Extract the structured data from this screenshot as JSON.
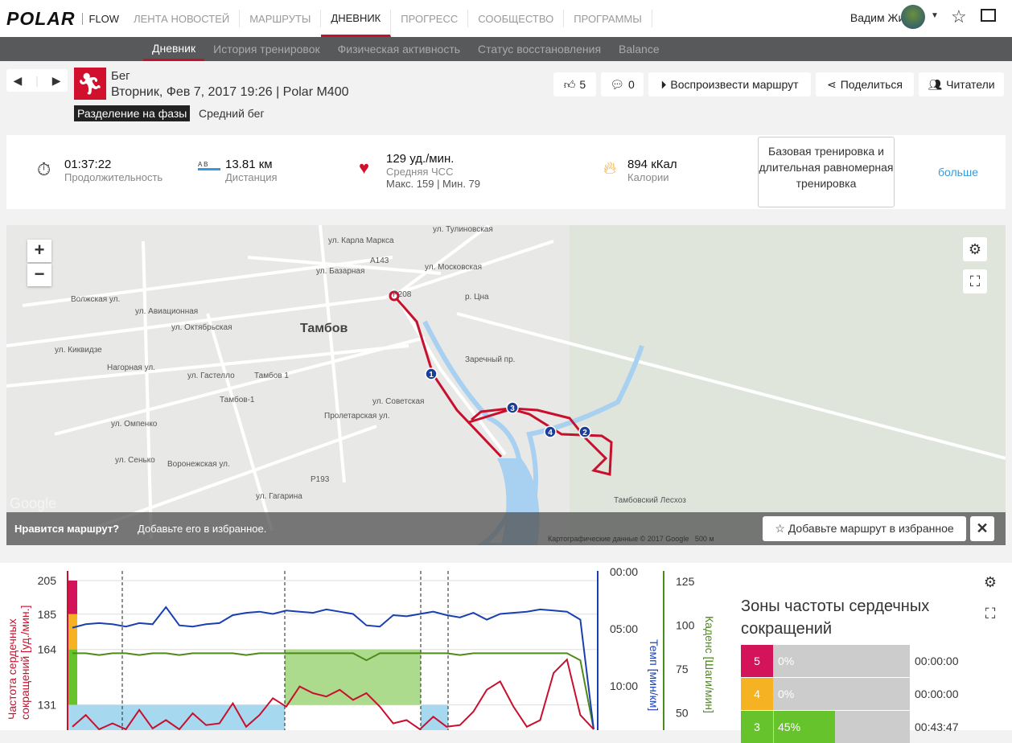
{
  "header": {
    "logo": "POLAR",
    "product": "FLOW",
    "nav": [
      "ЛЕНТА НОВОСТЕЙ",
      "МАРШРУТЫ",
      "ДНЕВНИК",
      "ПРОГРЕСС",
      "СООБЩЕСТВО",
      "ПРОГРАММЫ"
    ],
    "active_nav": 2,
    "user": "Вадим Жилин"
  },
  "subnav": {
    "items": [
      "Дневник",
      "История тренировок",
      "Физическая активность",
      "Статус восстановления",
      "Balance"
    ],
    "active": 0
  },
  "session": {
    "sport": "Бег",
    "datetime": "Вторник, Фев 7, 2017 19:26 | Polar M400",
    "phase_tag": "Разделение на фазы",
    "phase_type": "Средний бег"
  },
  "actions": {
    "likes": "5",
    "comments": "0",
    "replay": "Воспроизвести маршрут",
    "share": "Поделиться",
    "readers": "Читатели"
  },
  "summary": {
    "duration": "01:37:22",
    "duration_label": "Продолжительность",
    "ab_label": "A  B",
    "distance": "13.81 км",
    "distance_label": "Дистанция",
    "hr": "129 уд./мин.",
    "hr_label": "Средняя ЧСС",
    "hr_max": "Макс. 159  |  Мин. 79",
    "calories": "894 кКал",
    "calories_label": "Калории",
    "training": "Базовая тренировка и длительная равномерная тренировка",
    "more": "больше"
  },
  "map": {
    "city": "Тамбов",
    "labels": [
      "ул. Московская",
      "ул. Базарная",
      "ул. Октябрьская",
      "ул. Киквидзе",
      "ул. Гастелло",
      "ул. Советская",
      "Пролетарская ул.",
      "ул. Авиационная",
      "Волжская ул.",
      "Нагорная ул.",
      "ул. Омпенко",
      "ул. Сенько",
      "Воронежская ул.",
      "ул. Гагарина",
      "Тамбов 1",
      "Тамбов-1",
      "р. Цна",
      "Заречный пр.",
      "Тамбовский Лесхоз",
      "A143",
      "P208",
      "P193",
      "ул. Карла Маркса",
      "ул. Тулиновская"
    ],
    "markers": [
      "1",
      "2",
      "3",
      "4"
    ],
    "prompt_q": "Нравится маршрут?",
    "prompt_a": "Добавьте его в избранное.",
    "fav_button": "Добавьте маршрут в избранное",
    "close": "✕",
    "copyright": "Картографические данные © 2017 Google",
    "scale": "500 м",
    "zoom_in": "+",
    "zoom_out": "−",
    "watermark": "Google"
  },
  "chart": {
    "hr_axis_label": "Частота сердечных сокращений [уд./мин.]",
    "hr_ticks": [
      "205",
      "185",
      "164",
      "131"
    ],
    "pace_axis_label": "Темп [мин/км]",
    "pace_ticks": [
      "00:00",
      "05:00",
      "10:00"
    ],
    "cadence_axis_label": "Каденс [Шаги/мин]",
    "cadence_ticks": [
      "125",
      "100",
      "75",
      "50"
    ],
    "hr": [
      118,
      125,
      112,
      120,
      115,
      128,
      117,
      122,
      114,
      126,
      119,
      120,
      132,
      118,
      125,
      135,
      130,
      142,
      138,
      136,
      140,
      134,
      138,
      130,
      120,
      122,
      115,
      124,
      118,
      119,
      127,
      140,
      145,
      130,
      118,
      122,
      150,
      158,
      125,
      80
    ],
    "pace": [
      4.9,
      4.6,
      4.5,
      4.6,
      4.8,
      4.5,
      4.6,
      3.1,
      4.7,
      4.8,
      4.6,
      4.5,
      3.8,
      3.6,
      3.5,
      3.7,
      3.4,
      3.5,
      3.6,
      3.3,
      3.5,
      3.7,
      4.7,
      4.8,
      3.8,
      3.9,
      3.7,
      3.5,
      3.8,
      4.0,
      3.6,
      4.2,
      3.7,
      3.6,
      3.5,
      3.3,
      3.4,
      3.5,
      4.2,
      14
    ],
    "cadence": [
      84,
      84,
      83,
      84,
      84,
      83,
      84,
      84,
      83,
      84,
      84,
      84,
      84,
      83,
      84,
      84,
      84,
      84,
      84,
      84,
      84,
      84,
      80,
      84,
      84,
      84,
      84,
      84,
      84,
      83,
      84,
      84,
      84,
      84,
      84,
      84,
      84,
      84,
      80,
      40
    ]
  },
  "zones": {
    "title": "Зоны частоты сердечных сокращений",
    "rows": [
      {
        "zone": "5",
        "percent": "0%",
        "time": "00:00:00",
        "color": "#d3145a",
        "fill": 0
      },
      {
        "zone": "4",
        "percent": "0%",
        "time": "00:00:00",
        "color": "#f5b324",
        "fill": 0
      },
      {
        "zone": "3",
        "percent": "45%",
        "time": "00:43:47",
        "color": "#67c32b",
        "fill": 45
      }
    ]
  }
}
